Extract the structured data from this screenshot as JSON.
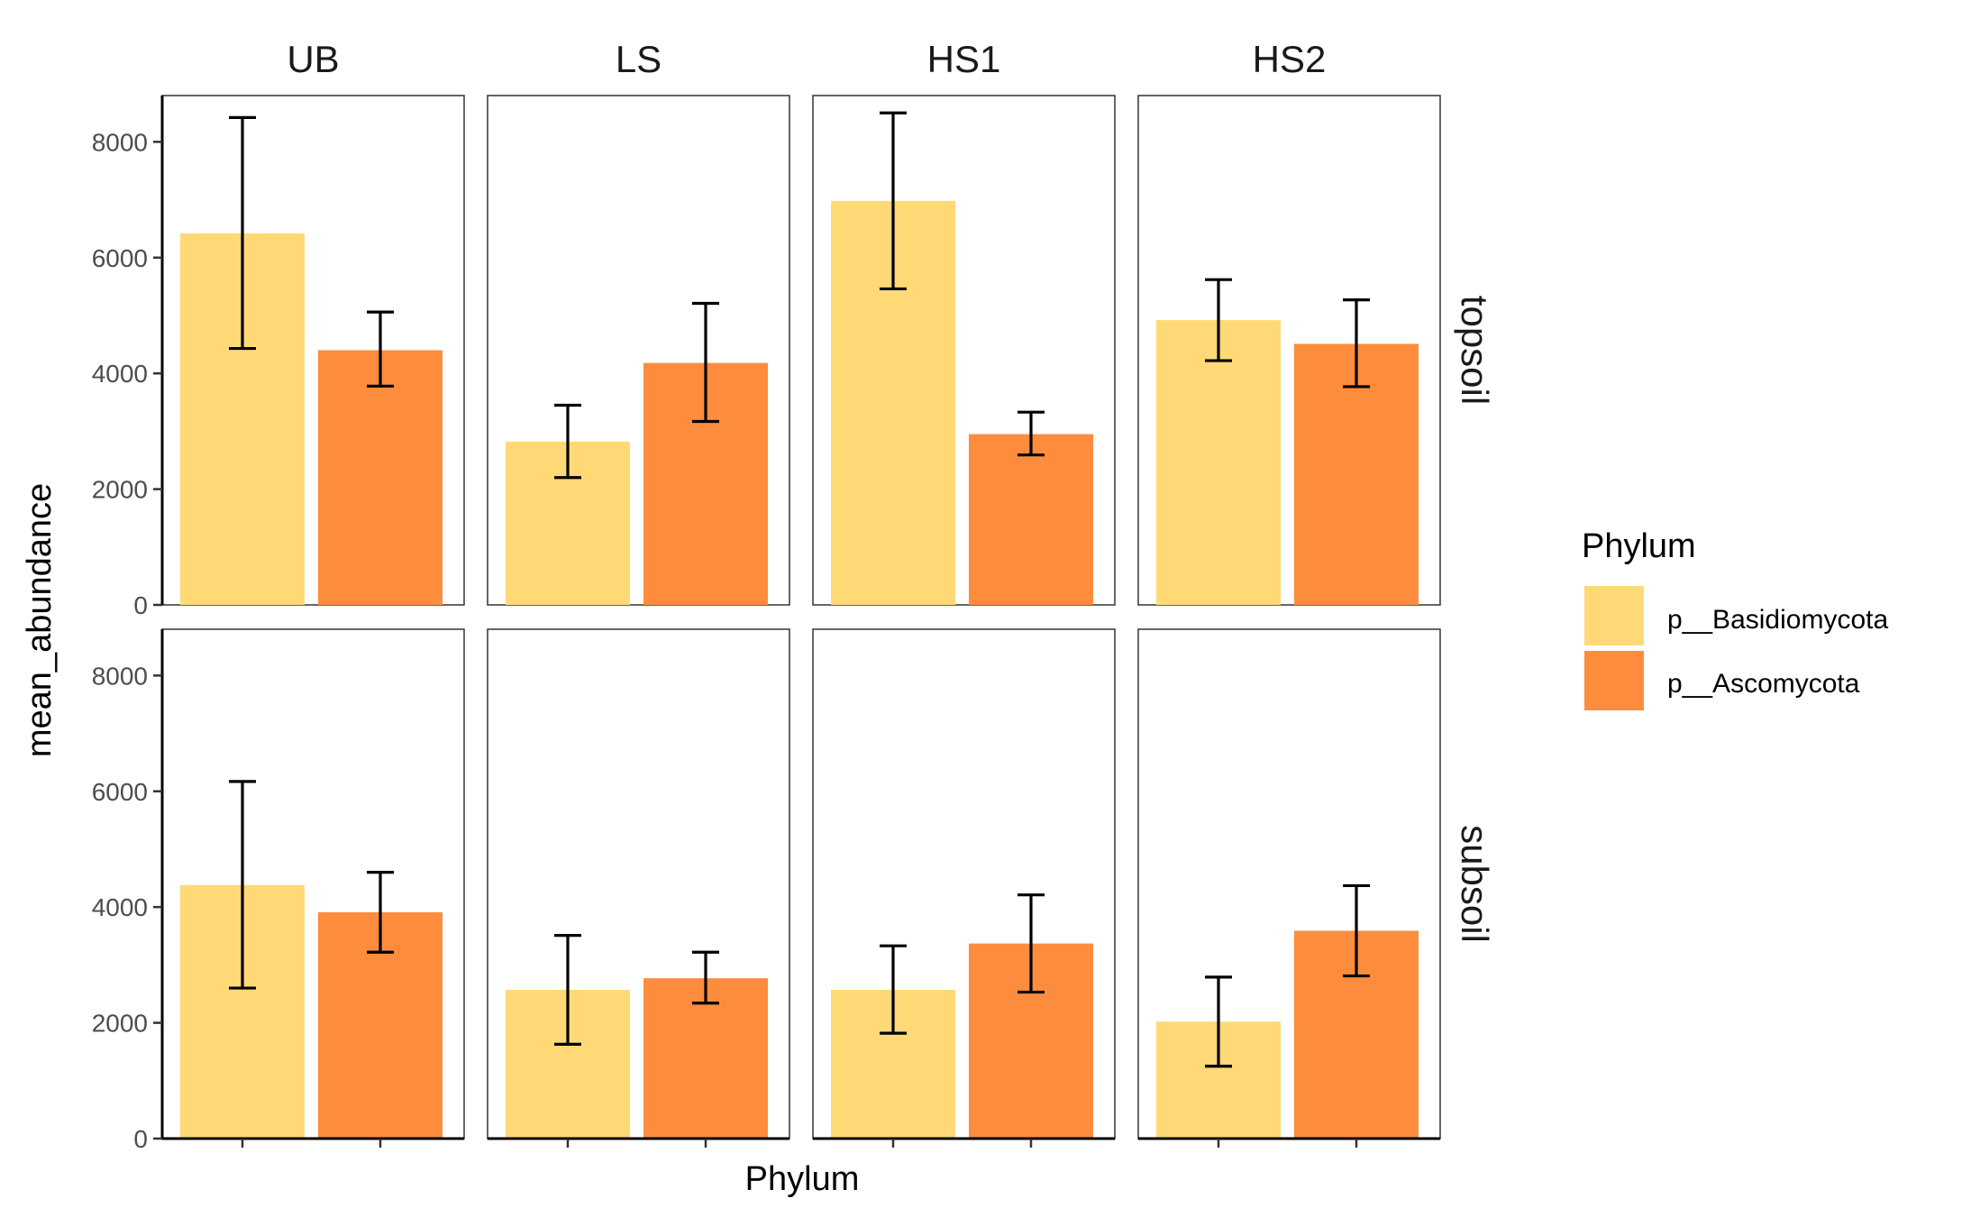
{
  "chart_data": {
    "type": "bar",
    "facet_columns": [
      "UB",
      "LS",
      "HS1",
      "HS2"
    ],
    "facet_rows": [
      "topsoil",
      "subsoil"
    ],
    "categories": [
      "p__Basidiomycota",
      "p__Ascomycota"
    ],
    "xlabel": "Phylum",
    "ylabel": "mean_abundance",
    "ylim": [
      0,
      8800
    ],
    "yticks": [
      0,
      2000,
      4000,
      6000,
      8000
    ],
    "x_tick_labels_shown": false,
    "grid": false,
    "legend": {
      "title": "Phylum",
      "position": "right",
      "entries": [
        {
          "label": "p__Basidiomycota",
          "color": "#FED976"
        },
        {
          "label": "p__Ascomycota",
          "color": "#FD8D3C"
        }
      ]
    },
    "series": [
      {
        "facet_row": "topsoil",
        "facet_column": "UB",
        "values": [
          6420,
          4400
        ],
        "error_low": [
          4430,
          3780
        ],
        "error_high": [
          8420,
          5060
        ]
      },
      {
        "facet_row": "topsoil",
        "facet_column": "LS",
        "values": [
          2820,
          4180
        ],
        "error_low": [
          2200,
          3170
        ],
        "error_high": [
          3450,
          5210
        ]
      },
      {
        "facet_row": "topsoil",
        "facet_column": "HS1",
        "values": [
          6980,
          2950
        ],
        "error_low": [
          5460,
          2590
        ],
        "error_high": [
          8500,
          3330
        ]
      },
      {
        "facet_row": "topsoil",
        "facet_column": "HS2",
        "values": [
          4920,
          4510
        ],
        "error_low": [
          4220,
          3770
        ],
        "error_high": [
          5620,
          5270
        ]
      },
      {
        "facet_row": "subsoil",
        "facet_column": "UB",
        "values": [
          4380,
          3910
        ],
        "error_low": [
          2600,
          3220
        ],
        "error_high": [
          6170,
          4600
        ]
      },
      {
        "facet_row": "subsoil",
        "facet_column": "LS",
        "values": [
          2570,
          2770
        ],
        "error_low": [
          1630,
          2340
        ],
        "error_high": [
          3510,
          3220
        ]
      },
      {
        "facet_row": "subsoil",
        "facet_column": "HS1",
        "values": [
          2570,
          3370
        ],
        "error_low": [
          1820,
          2530
        ],
        "error_high": [
          3330,
          4210
        ]
      },
      {
        "facet_row": "subsoil",
        "facet_column": "HS2",
        "values": [
          2020,
          3590
        ],
        "error_low": [
          1250,
          2810
        ],
        "error_high": [
          2790,
          4370
        ]
      }
    ]
  }
}
